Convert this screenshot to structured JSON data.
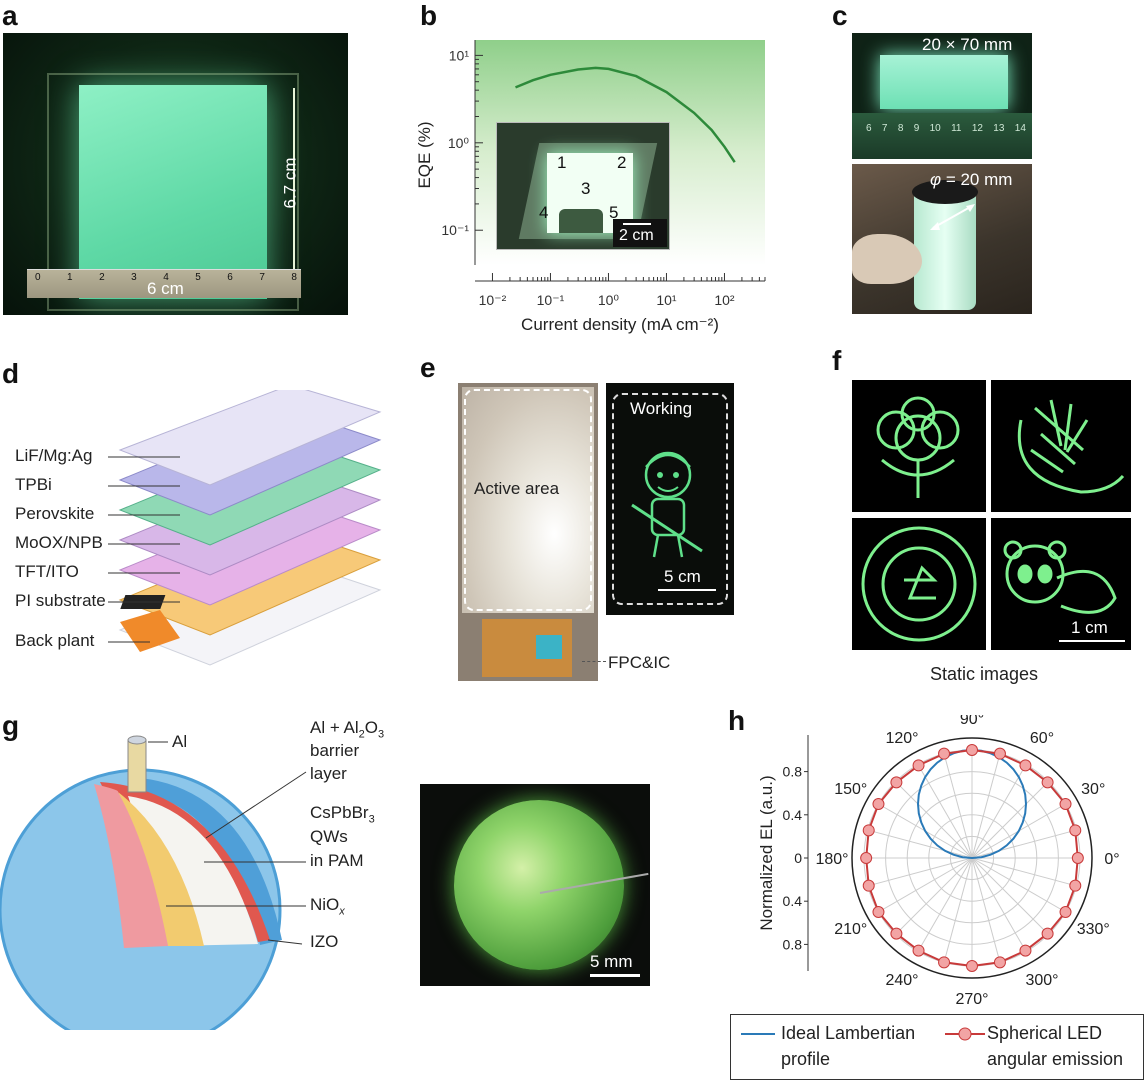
{
  "panels": {
    "a": {
      "label": "a",
      "height_label": "6.7 cm",
      "width_label": "6 cm",
      "ruler_ticks": [
        "0",
        "1",
        "2",
        "3",
        "4",
        "5",
        "6",
        "7",
        "8"
      ]
    },
    "b": {
      "label": "b",
      "inset_numbers": [
        "1",
        "2",
        "3",
        "4",
        "5"
      ],
      "scale_bar": "2 cm"
    },
    "c": {
      "label": "c",
      "top_label": "20 × 70 mm",
      "phi_symbol": "φ",
      "phi_value": " = 20 mm",
      "ruler_ticks": [
        "6",
        "7",
        "8",
        "9",
        "10",
        "11",
        "12",
        "13",
        "14"
      ]
    },
    "d": {
      "label": "d",
      "layers": [
        "LiF/Mg:Ag",
        "TPBi",
        "Perovskite",
        "MoOX/NPB",
        "TFT/ITO",
        "PI substrate",
        "Back plant"
      ]
    },
    "e": {
      "label": "e",
      "active_area": "Active area",
      "working": "Working",
      "scale_bar": "5 cm",
      "fpc": "FPC&IC"
    },
    "f": {
      "label": "f",
      "caption": "Static images",
      "scale_bar": "1 cm"
    },
    "g": {
      "label": "g",
      "al": "Al",
      "barrier_1": "Al + Al",
      "barrier_sub2": "2",
      "barrier_o": "O",
      "barrier_sub3": "3",
      "barrier_2": "barrier",
      "barrier_3": "layer",
      "qw_1": "CsPbBr",
      "qw_sub3": "3",
      "qw_2": "QWs",
      "qw_3": "in PAM",
      "nio": "NiO",
      "nio_sub": "x",
      "izo": "IZO",
      "scale_bar": "5 mm"
    },
    "h": {
      "label": "h"
    }
  },
  "chart_data": [
    {
      "type": "line",
      "panel": "b",
      "xlabel": "Current density (mA cm⁻²)",
      "ylabel": "EQE (%)",
      "x_scale": "log",
      "y_scale": "log",
      "xlim": [
        0.005,
        500
      ],
      "ylim": [
        0.04,
        15
      ],
      "x_ticks": [
        "10⁻²",
        "10⁻¹",
        "10⁰",
        "10¹",
        "10²"
      ],
      "y_ticks": [
        "10¹",
        "10⁰",
        "10⁻¹"
      ],
      "series": [
        {
          "x": [
            0.025,
            0.05,
            0.1,
            0.3,
            0.6,
            1,
            3,
            10,
            30,
            60,
            100,
            150
          ],
          "y": [
            4.3,
            5.2,
            6.0,
            6.9,
            7.2,
            7.0,
            5.8,
            3.8,
            2.2,
            1.4,
            0.9,
            0.6
          ]
        }
      ]
    },
    {
      "type": "line",
      "panel": "h",
      "polar": true,
      "ylabel": "Normalized EL (a.u.)",
      "r_ticks": [
        "0.8",
        "0.4",
        "0",
        "0.4",
        "0.8"
      ],
      "angle_ticks": [
        "0°",
        "30°",
        "60°",
        "90°",
        "120°",
        "150°",
        "180°",
        "210°",
        "240°",
        "270°",
        "300°",
        "330°"
      ],
      "series": [
        {
          "name": "Ideal Lambertian profile",
          "color": "#2a7ab8",
          "theta_deg": [
            0,
            15,
            30,
            45,
            60,
            75,
            90,
            105,
            120,
            135,
            150,
            165,
            180
          ],
          "r": [
            0,
            0.259,
            0.5,
            0.707,
            0.866,
            0.966,
            1,
            0.966,
            0.866,
            0.707,
            0.5,
            0.259,
            0
          ]
        },
        {
          "name": "Spherical LED angular emission",
          "color": "#c83a3a",
          "theta_deg": [
            0,
            15,
            30,
            45,
            60,
            75,
            90,
            105,
            120,
            135,
            150,
            165,
            180,
            195,
            210,
            225,
            240,
            255,
            270,
            285,
            300,
            315,
            330,
            345
          ],
          "r": [
            0.98,
            0.99,
            1,
            0.99,
            0.99,
            1,
            1,
            1,
            0.99,
            0.99,
            1,
            0.99,
            0.98,
            0.99,
            1,
            0.99,
            0.99,
            1,
            1,
            1,
            0.99,
            0.99,
            1,
            0.99
          ]
        }
      ]
    }
  ],
  "legend_h": {
    "item1_1": "Ideal Lambertian",
    "item1_2": "profile",
    "item2_1": "Spherical LED",
    "item2_2": "angular emission"
  }
}
